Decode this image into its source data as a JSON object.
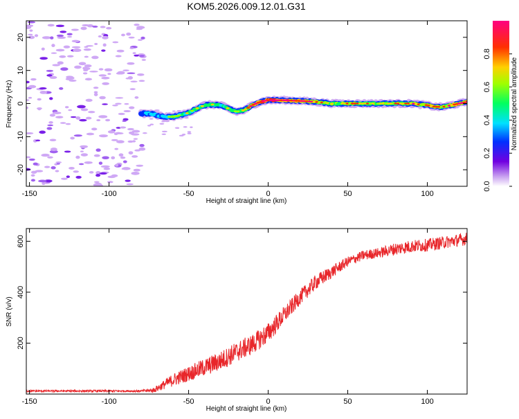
{
  "title": "KOM5.2026.009.12.01.G31",
  "chart_data": [
    {
      "type": "heatmap",
      "xlabel": "Height of straight line (km)",
      "ylabel": "Frequency (Hz)",
      "xlim": [
        -152,
        125
      ],
      "ylim": [
        -25,
        25
      ],
      "xticks": [
        -150,
        -100,
        -50,
        0,
        50,
        100
      ],
      "yticks": [
        -20,
        -10,
        0,
        10,
        20
      ],
      "colorbar": {
        "label": "Normalized spectral amplitude",
        "range": [
          0,
          1
        ],
        "ticks": [
          0.0,
          0.2,
          0.4,
          0.6,
          0.8
        ],
        "colors": [
          "#ffffff",
          "#c8a0f0",
          "#7000e0",
          "#0030ff",
          "#00e0ff",
          "#00ff60",
          "#a0ff00",
          "#ffd000",
          "#ff3000",
          "#ff0080"
        ]
      },
      "noise_region": [
        -152,
        -78
      ],
      "trace": {
        "x": [
          -80,
          -75,
          -70,
          -65,
          -60,
          -55,
          -50,
          -45,
          -40,
          -35,
          -30,
          -25,
          -20,
          -15,
          -10,
          -5,
          0,
          10,
          20,
          30,
          40,
          50,
          60,
          70,
          80,
          90,
          100,
          105,
          110,
          115,
          120,
          125
        ],
        "y": [
          -3,
          -3,
          -3.5,
          -4,
          -4,
          -3.5,
          -2.8,
          -1.5,
          -0.5,
          -0.3,
          -0.5,
          -1.5,
          -2.5,
          -2,
          -0.5,
          0.5,
          1,
          1,
          0.8,
          0.5,
          0,
          0,
          0,
          0,
          0,
          0,
          -0.5,
          -1,
          -1,
          -0.5,
          0,
          0.5
        ],
        "amplitude": [
          0.3,
          0.35,
          0.4,
          0.45,
          0.5,
          0.5,
          0.5,
          0.5,
          0.55,
          0.55,
          0.5,
          0.5,
          0.55,
          0.6,
          0.8,
          0.9,
          0.95,
          0.9,
          0.85,
          0.7,
          0.6,
          0.65,
          0.6,
          0.6,
          0.65,
          0.7,
          0.75,
          0.8,
          0.7,
          0.75,
          0.85,
          0.8
        ]
      }
    },
    {
      "type": "line",
      "xlabel": "Height of straight line (km)",
      "ylabel": "SNR (v/v)",
      "xlim": [
        -152,
        125
      ],
      "ylim": [
        0,
        650
      ],
      "xticks": [
        -150,
        -100,
        -50,
        0,
        50,
        100
      ],
      "yticks": [
        200,
        400,
        600
      ],
      "color": "#e8262a",
      "envelope": {
        "x": [
          -152,
          -80,
          -72,
          -60,
          -50,
          -40,
          -30,
          -20,
          -10,
          0,
          10,
          20,
          30,
          40,
          50,
          60,
          70,
          80,
          90,
          100,
          110,
          125
        ],
        "y": [
          12,
          12,
          15,
          55,
          80,
          105,
          130,
          165,
          195,
          240,
          310,
          380,
          440,
          480,
          520,
          545,
          555,
          570,
          580,
          585,
          595,
          610
        ]
      },
      "noise_amplitude": [
        4,
        4,
        10,
        25,
        30,
        35,
        38,
        40,
        40,
        40,
        35,
        30,
        30,
        25,
        20,
        20,
        20,
        25,
        25,
        25,
        25,
        25
      ]
    }
  ]
}
